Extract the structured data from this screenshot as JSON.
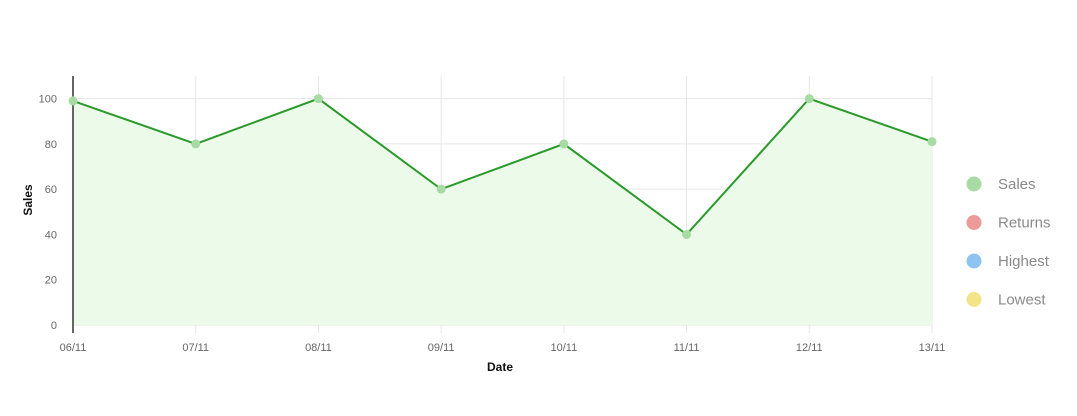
{
  "chart_data": {
    "type": "area",
    "title": "",
    "xlabel": "Date",
    "ylabel": "Sales",
    "x": [
      "06/11",
      "07/11",
      "08/11",
      "09/11",
      "10/11",
      "11/11",
      "12/11",
      "13/11"
    ],
    "series": [
      {
        "name": "Sales",
        "values": [
          99,
          80,
          100,
          60,
          80,
          40,
          100,
          81
        ],
        "color": "#2a9a2a",
        "fill": "#ecfaea",
        "marker_color": "#a8dba4"
      }
    ],
    "ylim": [
      0,
      110
    ],
    "yticks": [
      0,
      20,
      40,
      60,
      80,
      100
    ],
    "grid": true,
    "legend": {
      "position": "right",
      "items": [
        {
          "label": "Sales",
          "color": "#a8dba4"
        },
        {
          "label": "Returns",
          "color": "#ef9a9a"
        },
        {
          "label": "Highest",
          "color": "#90c4f0"
        },
        {
          "label": "Lowest",
          "color": "#f3e48a"
        }
      ]
    }
  }
}
